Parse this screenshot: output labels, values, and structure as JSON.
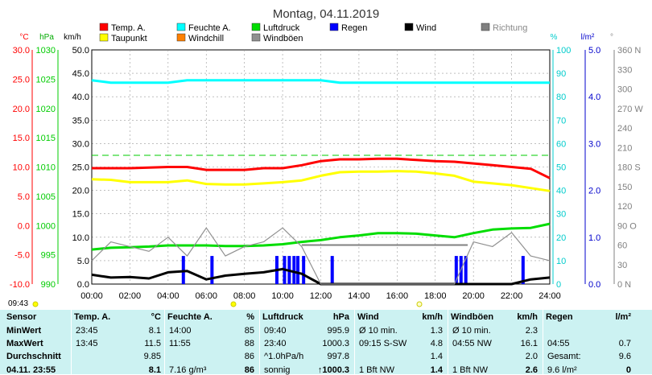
{
  "title": "Montag, 04.11.2019",
  "legend": [
    {
      "label": "Temp. A.",
      "color": "#ff0000"
    },
    {
      "label": "Feuchte A.",
      "color": "#00ffff"
    },
    {
      "label": "Luftdruck",
      "color": "#00dd00"
    },
    {
      "label": "Regen",
      "color": "#0000ff"
    },
    {
      "label": "Wind",
      "color": "#000000"
    },
    {
      "label": "Richtung",
      "color": "#808080"
    },
    {
      "label": "Taupunkt",
      "color": "#ffff00"
    },
    {
      "label": "Windchill",
      "color": "#ff8000"
    },
    {
      "label": "Windböen",
      "color": "#909090"
    }
  ],
  "axis_units": {
    "temp": "°C",
    "press": "hPa",
    "wind": "km/h",
    "hum": "%",
    "rain": "l/m²",
    "dir": "°"
  },
  "left_time_label": "09:43",
  "chart_data": {
    "type": "line",
    "x_ticks": [
      "00:00",
      "02:00",
      "04:00",
      "06:00",
      "08:00",
      "10:00",
      "12:00",
      "14:00",
      "16:00",
      "18:00",
      "20:00",
      "22:00",
      "24:00"
    ],
    "axes": {
      "temp": {
        "ticks": [
          "30.0",
          "25.0",
          "20.0",
          "15.0",
          "10.0",
          "5.0",
          "0.0",
          "-5.0",
          "-10.0"
        ],
        "ylim": [
          -10,
          30
        ],
        "color": "#ff0000"
      },
      "press": {
        "ticks": [
          "1030",
          "1025",
          "1020",
          "1015",
          "1010",
          "1005",
          "1000",
          "995",
          "990"
        ],
        "ylim": [
          990,
          1030
        ],
        "color": "#00cc00"
      },
      "wind": {
        "ticks": [
          "50.0",
          "45.0",
          "40.0",
          "35.0",
          "30.0",
          "25.0",
          "20.0",
          "15.0",
          "10.0",
          "5.0",
          "0.0"
        ],
        "ylim": [
          0,
          50
        ],
        "color": "#000000"
      },
      "hum": {
        "ticks": [
          "100",
          "90",
          "80",
          "70",
          "60",
          "50",
          "40",
          "30",
          "20",
          "10",
          "0"
        ],
        "ylim": [
          0,
          100
        ],
        "color": "#00cccc"
      },
      "rain": {
        "ticks": [
          "5.0",
          "4.0",
          "3.0",
          "2.0",
          "1.0",
          "0.0"
        ],
        "ylim": [
          0,
          5
        ],
        "color": "#0000cc"
      },
      "dir": {
        "ticks": [
          "360 N",
          "330",
          "300",
          "270 W",
          "240",
          "210",
          "180 S",
          "150",
          "120",
          "90 O",
          "60",
          "30",
          "0 N"
        ],
        "ylim": [
          0,
          360
        ],
        "color": "#808080"
      }
    },
    "x_hours": [
      0,
      1,
      2,
      3,
      4,
      5,
      6,
      7,
      8,
      9,
      10,
      11,
      12,
      13,
      14,
      15,
      16,
      17,
      18,
      19,
      20,
      21,
      22,
      23,
      24
    ],
    "series": [
      {
        "name": "Temp. A.",
        "axis": "temp",
        "color": "#ff0000",
        "values": [
          9.8,
          9.8,
          9.8,
          9.9,
          10.0,
          10.0,
          9.5,
          9.5,
          9.5,
          9.8,
          9.8,
          10.3,
          11.0,
          11.3,
          11.3,
          11.4,
          11.4,
          11.2,
          11.0,
          10.9,
          10.6,
          10.3,
          10.0,
          9.7,
          8.1
        ]
      },
      {
        "name": "Taupunkt",
        "axis": "temp",
        "color": "#ffff00",
        "values": [
          7.9,
          7.8,
          7.4,
          7.4,
          7.4,
          7.7,
          7.1,
          7.0,
          7.0,
          7.2,
          7.4,
          7.7,
          8.5,
          9.1,
          9.2,
          9.2,
          9.3,
          9.2,
          8.9,
          8.5,
          7.5,
          7.2,
          6.9,
          6.4,
          5.9
        ]
      },
      {
        "name": "Feuchte A.",
        "axis": "hum",
        "color": "#00ffff",
        "values": [
          87,
          86,
          86,
          86,
          86,
          87,
          87,
          87,
          87,
          87,
          87,
          87,
          87,
          86,
          86,
          86,
          86,
          86,
          86,
          86,
          86,
          86,
          86,
          86,
          86
        ]
      },
      {
        "name": "Luftdruck",
        "axis": "press",
        "color": "#00dd00",
        "values": [
          995.9,
          996.2,
          996.3,
          996.4,
          996.6,
          996.6,
          996.6,
          996.5,
          996.5,
          996.6,
          996.8,
          997.2,
          997.5,
          998.0,
          998.3,
          998.7,
          998.7,
          998.6,
          998.3,
          998.0,
          998.7,
          999.3,
          999.5,
          999.6,
          1000.3
        ]
      },
      {
        "name": "Wind",
        "axis": "wind",
        "color": "#000000",
        "values": [
          2.0,
          1.4,
          1.5,
          1.2,
          2.5,
          2.8,
          1.0,
          1.8,
          2.2,
          2.5,
          3.2,
          2.2,
          0,
          0,
          0,
          0,
          0,
          0,
          0,
          0,
          0,
          0,
          0,
          1.0,
          1.4
        ]
      },
      {
        "name": "Windböen",
        "axis": "wind",
        "color": "#909090",
        "values": [
          5,
          9,
          8,
          7,
          10,
          6,
          12,
          6,
          8,
          9,
          12,
          8,
          0,
          0,
          0,
          0,
          0,
          0,
          0,
          0,
          9,
          8,
          11,
          6,
          5
        ]
      }
    ],
    "rain_bars_hours": [
      4.8,
      6.3,
      9.7,
      10.1,
      10.35,
      10.6,
      10.8,
      11.1,
      12.6,
      19.1,
      19.35,
      19.6,
      22.6
    ],
    "rain_bar_value": 0.6,
    "direction_line": {
      "from_hour": 11,
      "to_hour": 19.7,
      "value": 60
    },
    "dew_reference": {
      "axis": "temp",
      "value": 12.0,
      "color": "#00cc00"
    }
  },
  "table": {
    "row_labels": [
      "Sensor",
      "MinWert",
      "MaxWert",
      "Durchschnitt",
      "04.11. 23:55"
    ],
    "columns": [
      {
        "title": "Temp. A.",
        "unit": "°C",
        "cells": [
          [
            "23:45",
            "8.1"
          ],
          [
            "13:45",
            "11.5"
          ],
          [
            "",
            "9.85"
          ],
          [
            "",
            "8.1"
          ]
        ]
      },
      {
        "title": "Feuchte A.",
        "unit": "%",
        "cells": [
          [
            "14:00",
            "85"
          ],
          [
            "11:55",
            "88"
          ],
          [
            "",
            "86"
          ],
          [
            "7.16 g/m³",
            "86"
          ]
        ]
      },
      {
        "title": "Luftdruck",
        "unit": "hPa",
        "cells": [
          [
            "09:40",
            "995.9"
          ],
          [
            "23:40",
            "1000.3"
          ],
          [
            "^1.0hPa/h",
            "997.8"
          ],
          [
            "sonnig",
            "↑1000.3"
          ]
        ]
      },
      {
        "title": "Wind",
        "unit": "km/h",
        "cells": [
          [
            "Ø 10 min.",
            "1.3"
          ],
          [
            "09:15  S-SW",
            "4.8"
          ],
          [
            "",
            "1.4"
          ],
          [
            "1 Bft NW",
            "1.4"
          ]
        ]
      },
      {
        "title": "Windböen",
        "unit": "km/h",
        "cells": [
          [
            "Ø 10 min.",
            "2.3"
          ],
          [
            "04:55  NW",
            "16.1"
          ],
          [
            "",
            "2.0"
          ],
          [
            "1 Bft NW",
            "2.6"
          ]
        ]
      },
      {
        "title": "Regen",
        "unit": "l/m²",
        "cells": [
          [
            "",
            ""
          ],
          [
            "04:55",
            "0.7"
          ],
          [
            "Gesamt:",
            "9.6"
          ],
          [
            "9.6 l/m²",
            "0"
          ]
        ]
      }
    ]
  }
}
